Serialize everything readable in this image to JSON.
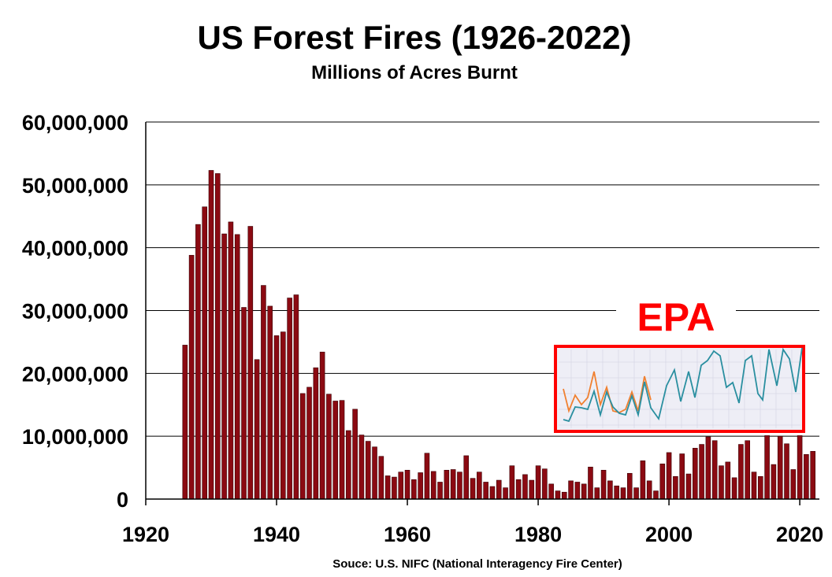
{
  "chart_data": {
    "type": "bar",
    "title": "US Forest Fires (1926-2022)",
    "subtitle": "Millions of Acres Burnt",
    "source": "Souce: U.S. NIFC (National Interagency Fire Center)",
    "stamp": "EPA",
    "xlim": [
      1920,
      2023
    ],
    "ylim": [
      0,
      60000000
    ],
    "x_ticks": [
      1920,
      1940,
      1960,
      1980,
      2000,
      2020
    ],
    "y_ticks": [
      0,
      10000000,
      20000000,
      30000000,
      40000000,
      50000000,
      60000000
    ],
    "y_tick_labels": [
      "0",
      "10,000,000",
      "20,000,000",
      "30,000,000",
      "40,000,000",
      "50,000,000",
      "60,000,000"
    ],
    "grid": true,
    "colors": {
      "bar": "#8b0a12",
      "stamp": "#ff0000",
      "inset_line_1": "#2a8fa0",
      "inset_line_2": "#f08030",
      "inset_bg": "#eeeef6"
    },
    "years": [
      1926,
      1927,
      1928,
      1929,
      1930,
      1931,
      1932,
      1933,
      1934,
      1935,
      1936,
      1937,
      1938,
      1939,
      1940,
      1941,
      1942,
      1943,
      1944,
      1945,
      1946,
      1947,
      1948,
      1949,
      1950,
      1951,
      1952,
      1953,
      1954,
      1955,
      1956,
      1957,
      1958,
      1959,
      1960,
      1961,
      1962,
      1963,
      1964,
      1965,
      1966,
      1967,
      1968,
      1969,
      1970,
      1971,
      1972,
      1973,
      1974,
      1975,
      1976,
      1977,
      1978,
      1979,
      1980,
      1981,
      1982,
      1983,
      1984,
      1985,
      1986,
      1987,
      1988,
      1989,
      1990,
      1991,
      1992,
      1993,
      1994,
      1995,
      1996,
      1997,
      1998,
      1999,
      2000,
      2001,
      2002,
      2003,
      2004,
      2005,
      2006,
      2007,
      2008,
      2009,
      2010,
      2011,
      2012,
      2013,
      2014,
      2015,
      2016,
      2017,
      2018,
      2019,
      2020,
      2021,
      2022
    ],
    "values": [
      24500000,
      38800000,
      43700000,
      46500000,
      52300000,
      51800000,
      42200000,
      44100000,
      42100000,
      30500000,
      43400000,
      22200000,
      34000000,
      30700000,
      26000000,
      26600000,
      32000000,
      32500000,
      16800000,
      17800000,
      20900000,
      23400000,
      16700000,
      15600000,
      15700000,
      10900000,
      14300000,
      10200000,
      9200000,
      8300000,
      6800000,
      3700000,
      3500000,
      4300000,
      4600000,
      3100000,
      4200000,
      7300000,
      4400000,
      2700000,
      4600000,
      4700000,
      4300000,
      6900000,
      3300000,
      4300000,
      2700000,
      2000000,
      3000000,
      1800000,
      5300000,
      3100000,
      3900000,
      3000000,
      5300000,
      4800000,
      2400000,
      1300000,
      1100000,
      2900000,
      2700000,
      2400000,
      5100000,
      1800000,
      4600000,
      2900000,
      2100000,
      1800000,
      4100000,
      1800000,
      6100000,
      2900000,
      1300000,
      5600000,
      7400000,
      3600000,
      7200000,
      4000000,
      8100000,
      8700000,
      9900000,
      9300000,
      5300000,
      5900000,
      3400000,
      8700000,
      9300000,
      4300000,
      3600000,
      10100000,
      5500000,
      10000000,
      8800000,
      4700000,
      10100000,
      7100000,
      7600000
    ]
  }
}
